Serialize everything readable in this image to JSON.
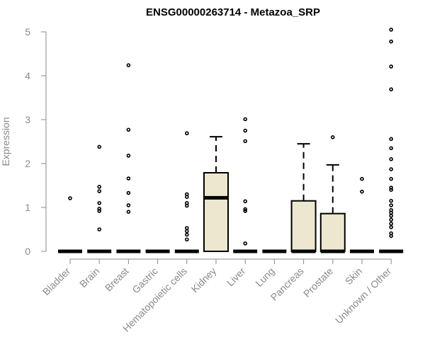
{
  "chart_data": {
    "type": "box",
    "title": "ENSG00000263714 - Metazoa_SRP",
    "xlabel": "",
    "ylabel": "Expression",
    "ylim": [
      0,
      5.1
    ],
    "yticks": [
      0,
      1,
      2,
      3,
      4,
      5
    ],
    "box_fill": "#ede7cf",
    "categories": [
      "Bladder",
      "Brain",
      "Breast",
      "Gastric",
      "Hematopoietic cells",
      "Kidney",
      "Liver",
      "Lung",
      "Pancreas",
      "Prostate",
      "Skin",
      "Unknown / Other"
    ],
    "boxes": [
      {
        "category": "Bladder",
        "q1": 0,
        "median": 0,
        "q3": 0,
        "whisker_low": 0,
        "whisker_high": 0,
        "outliers": [
          1.21
        ]
      },
      {
        "category": "Brain",
        "q1": 0,
        "median": 0,
        "q3": 0,
        "whisker_low": 0,
        "whisker_high": 0,
        "outliers": [
          0.5,
          0.92,
          0.97,
          1.1,
          1.37,
          1.47,
          2.38
        ]
      },
      {
        "category": "Breast",
        "q1": 0,
        "median": 0,
        "q3": 0,
        "whisker_low": 0,
        "whisker_high": 0,
        "outliers": [
          0.9,
          1.05,
          1.33,
          1.66,
          2.18,
          2.77,
          4.24
        ]
      },
      {
        "category": "Gastric",
        "q1": 0,
        "median": 0,
        "q3": 0,
        "whisker_low": 0,
        "whisker_high": 0,
        "outliers": []
      },
      {
        "category": "Hematopoietic cells",
        "q1": 0,
        "median": 0,
        "q3": 0,
        "whisker_low": 0,
        "whisker_high": 0,
        "outliers": [
          0.27,
          0.38,
          0.46,
          0.53,
          1.04,
          1.1,
          1.24,
          1.3,
          2.69
        ]
      },
      {
        "category": "Kidney",
        "q1": 0,
        "median": 1.22,
        "q3": 1.79,
        "whisker_low": 0,
        "whisker_high": 2.61,
        "outliers": []
      },
      {
        "category": "Liver",
        "q1": 0,
        "median": 0,
        "q3": 0,
        "whisker_low": 0,
        "whisker_high": 0,
        "outliers": [
          0.18,
          0.92,
          0.96,
          1.14,
          2.51,
          2.75,
          3.01
        ]
      },
      {
        "category": "Lung",
        "q1": 0,
        "median": 0,
        "q3": 0,
        "whisker_low": 0,
        "whisker_high": 0,
        "outliers": []
      },
      {
        "category": "Pancreas",
        "q1": 0,
        "median": 0,
        "q3": 1.15,
        "whisker_low": 0,
        "whisker_high": 2.45,
        "outliers": []
      },
      {
        "category": "Prostate",
        "q1": 0,
        "median": 0,
        "q3": 0.86,
        "whisker_low": 0,
        "whisker_high": 1.97,
        "outliers": [
          2.6
        ]
      },
      {
        "category": "Skin",
        "q1": 0,
        "median": 0,
        "q3": 0,
        "whisker_low": 0,
        "whisker_high": 0,
        "outliers": [
          1.36,
          1.65
        ]
      },
      {
        "category": "Unknown / Other",
        "q1": 0,
        "median": 0,
        "q3": 0,
        "whisker_low": 0,
        "whisker_high": 0,
        "outliers": [
          0.35,
          0.41,
          0.55,
          0.63,
          0.72,
          0.81,
          0.88,
          0.94,
          1.05,
          1.15,
          1.4,
          1.45,
          1.65,
          1.87,
          2.1,
          2.35,
          2.56,
          3.69,
          4.21,
          4.78,
          5.05
        ]
      }
    ]
  }
}
